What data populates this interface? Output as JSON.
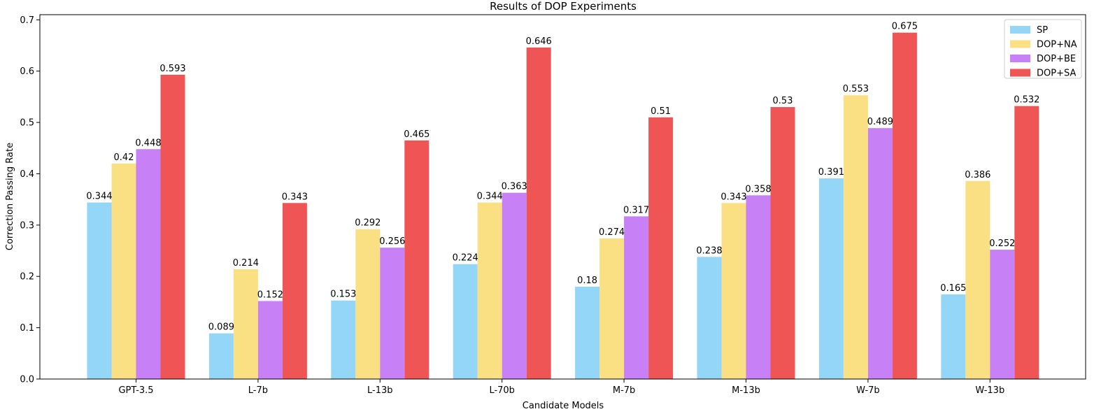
{
  "chart_data": {
    "type": "bar",
    "title": "Results of DOP Experiments",
    "xlabel": "Candidate Models",
    "ylabel": "Correction Passing Rate",
    "ylim": [
      0,
      0.71
    ],
    "yticks": [
      "0.0",
      "0.1",
      "0.2",
      "0.3",
      "0.4",
      "0.5",
      "0.6",
      "0.7"
    ],
    "categories": [
      "GPT-3.5",
      "L-7b",
      "L-13b",
      "L-70b",
      "M-7b",
      "M-13b",
      "W-7b",
      "W-13b"
    ],
    "series": [
      {
        "name": "SP",
        "color": "#94d6f8",
        "values": [
          0.344,
          0.089,
          0.153,
          0.224,
          0.18,
          0.238,
          0.391,
          0.165
        ],
        "labels": [
          "0.344",
          "0.089",
          "0.153",
          "0.224",
          "0.18",
          "0.238",
          "0.391",
          "0.165"
        ]
      },
      {
        "name": "DOP+NA",
        "color": "#fbe083",
        "values": [
          0.42,
          0.214,
          0.292,
          0.344,
          0.274,
          0.343,
          0.553,
          0.386
        ],
        "labels": [
          "0.42",
          "0.214",
          "0.292",
          "0.344",
          "0.274",
          "0.343",
          "0.553",
          "0.386"
        ]
      },
      {
        "name": "DOP+BE",
        "color": "#c780f5",
        "values": [
          0.448,
          0.152,
          0.256,
          0.363,
          0.317,
          0.358,
          0.489,
          0.252
        ],
        "labels": [
          "0.448",
          "0.152",
          "0.256",
          "0.363",
          "0.317",
          "0.358",
          "0.489",
          "0.252"
        ]
      },
      {
        "name": "DOP+SA",
        "color": "#ef5555",
        "values": [
          0.593,
          0.343,
          0.465,
          0.646,
          0.51,
          0.53,
          0.675,
          0.532
        ],
        "labels": [
          "0.593",
          "0.343",
          "0.465",
          "0.646",
          "0.51",
          "0.53",
          "0.675",
          "0.532"
        ]
      }
    ],
    "legend_position": "top-right",
    "grid": false
  }
}
